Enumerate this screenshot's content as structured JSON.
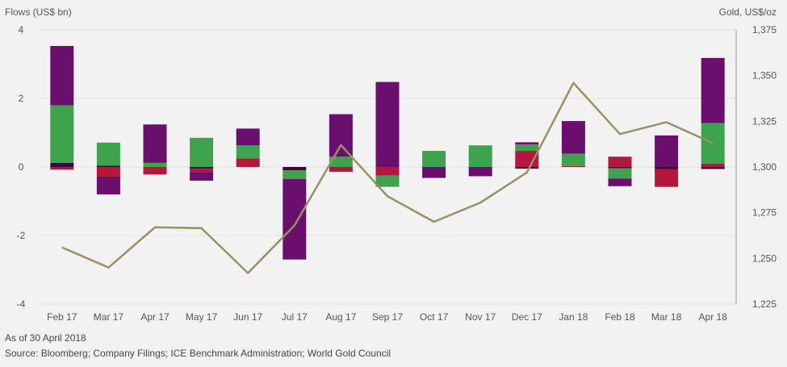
{
  "chart_data": {
    "type": "bar",
    "stacked": true,
    "left_axis_title": "Flows (US$ bn)",
    "right_axis_title": "Gold, US$/oz",
    "categories": [
      "Feb 17",
      "Mar 17",
      "Apr 17",
      "May 17",
      "Jun 17",
      "Jul 17",
      "Aug 17",
      "Sep 17",
      "Oct 17",
      "Nov 17",
      "Dec 17",
      "Jan 18",
      "Feb 18",
      "Mar 18",
      "Apr 18"
    ],
    "ylim": [
      -4,
      4
    ],
    "yticks": [
      "4",
      "2",
      "0",
      "-2",
      "-4"
    ],
    "y2lim": [
      1225,
      1375
    ],
    "y2ticks": [
      "1,375",
      "1,350",
      "1,325",
      "1,300",
      "1,275",
      "1,250",
      "1,225"
    ],
    "grid": true,
    "series": [
      {
        "key": "dark",
        "color": "#3a0a3a",
        "values": [
          0.12,
          0.04,
          0.0,
          -0.05,
          0.0,
          -0.1,
          0.0,
          0.0,
          0.0,
          0.0,
          -0.05,
          0.0,
          -0.04,
          -0.06,
          -0.06
        ]
      },
      {
        "key": "red",
        "color": "#b5163c",
        "values": [
          -0.08,
          -0.28,
          -0.22,
          -0.1,
          0.25,
          0.0,
          -0.14,
          -0.25,
          0.0,
          0.0,
          0.47,
          0.03,
          0.3,
          -0.52,
          0.1
        ]
      },
      {
        "key": "green",
        "color": "#3fa34d",
        "values": [
          1.68,
          0.67,
          0.12,
          0.85,
          0.38,
          -0.25,
          0.3,
          -0.33,
          0.47,
          0.63,
          0.19,
          0.36,
          -0.3,
          0.0,
          1.18
        ]
      },
      {
        "key": "purple",
        "color": "#6b0f6e",
        "values": [
          1.73,
          -0.52,
          1.12,
          -0.25,
          0.49,
          -2.35,
          1.24,
          2.48,
          -0.32,
          -0.27,
          0.06,
          0.95,
          -0.22,
          0.92,
          1.9
        ]
      }
    ],
    "gold_price": {
      "color": "#9a9064",
      "values": [
        1256,
        1245,
        1267,
        1266.5,
        1242,
        1268,
        1312,
        1284,
        1270,
        1280.5,
        1297,
        1346,
        1318,
        1324.5,
        1313
      ]
    }
  },
  "footnotes": {
    "as_of": "As of 30 April 2018",
    "source": "Source: Bloomberg; Company Filings; ICE Benchmark Administration; World Gold Council"
  }
}
